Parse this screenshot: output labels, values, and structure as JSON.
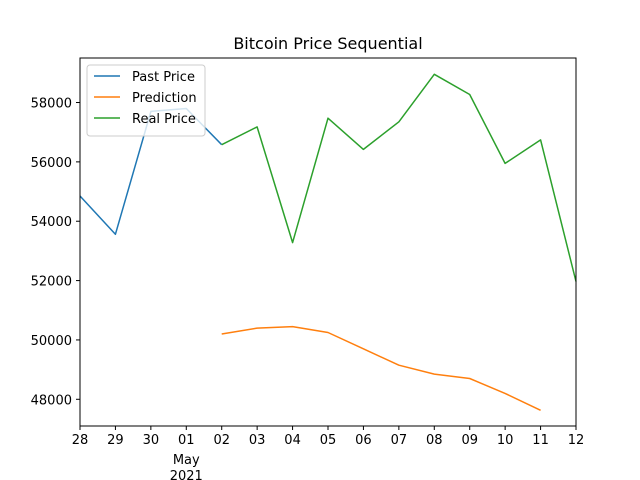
{
  "chart_data": {
    "type": "line",
    "title": "Bitcoin Price Sequential",
    "xlabel": "",
    "ylabel": "",
    "x_ticks": [
      "28",
      "29",
      "30",
      "01",
      "02",
      "03",
      "04",
      "05",
      "06",
      "07",
      "08",
      "09",
      "10",
      "11",
      "12"
    ],
    "x_tick_sublabel": {
      "tick": "01",
      "lines": [
        "May",
        "2021"
      ]
    },
    "y_ticks": [
      48000,
      50000,
      52000,
      54000,
      56000,
      58000
    ],
    "ylim": [
      47100,
      59500
    ],
    "grid": false,
    "legend_position": "top-left",
    "series": [
      {
        "name": "Past Price",
        "color": "#1f77b4",
        "x": [
          "28",
          "29",
          "30",
          "01",
          "02"
        ],
        "values": [
          54850,
          53560,
          57700,
          57800,
          56580
        ]
      },
      {
        "name": "Prediction",
        "color": "#ff7f0e",
        "x": [
          "02",
          "03",
          "04",
          "05",
          "06",
          "07",
          "08",
          "09",
          "10",
          "11"
        ],
        "values": [
          50200,
          50400,
          50450,
          50250,
          49700,
          49150,
          48850,
          48700,
          48200,
          47630
        ]
      },
      {
        "name": "Real Price",
        "color": "#2ca02c",
        "x": [
          "02",
          "03",
          "04",
          "05",
          "06",
          "07",
          "08",
          "09",
          "10",
          "11",
          "12"
        ],
        "values": [
          56580,
          57180,
          53280,
          57470,
          56420,
          57350,
          58950,
          58270,
          55950,
          56740,
          51970
        ]
      }
    ]
  }
}
